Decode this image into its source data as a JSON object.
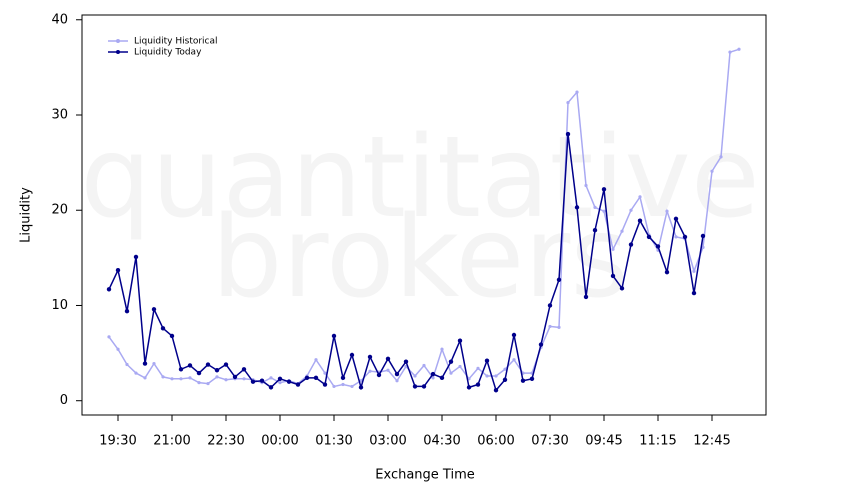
{
  "chart_data": {
    "type": "line",
    "watermark": [
      "quantitative",
      "brokers"
    ],
    "xlabel": "Exchange Time",
    "ylabel": "Liquidity",
    "categories": [
      null,
      "19:30",
      null,
      null,
      null,
      null,
      null,
      "21:00",
      null,
      null,
      null,
      null,
      null,
      "22:30",
      null,
      null,
      null,
      null,
      null,
      "00:00",
      null,
      null,
      null,
      null,
      null,
      "01:30",
      null,
      null,
      null,
      null,
      null,
      "03:00",
      null,
      null,
      null,
      null,
      null,
      "04:30",
      null,
      null,
      null,
      null,
      null,
      "06:00",
      null,
      null,
      null,
      null,
      null,
      "07:30",
      null,
      null,
      null,
      null,
      null,
      "09:45",
      null,
      null,
      null,
      null,
      null,
      "11:15",
      null,
      null,
      null,
      null,
      null,
      "12:45",
      null,
      null,
      null
    ],
    "series": [
      {
        "name": "Liquidity Historical",
        "color": "#a9a9f2",
        "values": [
          6.7,
          5.4,
          3.8,
          2.9,
          2.4,
          3.9,
          2.5,
          2.3,
          2.3,
          2.4,
          1.9,
          1.8,
          2.5,
          2.2,
          2.3,
          2.3,
          2.2,
          1.9,
          2.4,
          1.9,
          2.1,
          1.8,
          2.6,
          4.3,
          2.9,
          1.5,
          1.7,
          1.5,
          2.1,
          3.1,
          3.0,
          3.2,
          2.1,
          3.6,
          2.6,
          3.7,
          2.4,
          5.4,
          2.9,
          3.6,
          2.3,
          3.4,
          2.6,
          2.6,
          3.3,
          4.3,
          2.9,
          2.9,
          5.6,
          7.8,
          7.7,
          31.3,
          32.4,
          22.6,
          20.3,
          19.9,
          15.9,
          17.8,
          20.0,
          21.4,
          17.4,
          15.8,
          19.9,
          17.2,
          17.0,
          13.6,
          16.1,
          24.1,
          25.6,
          36.6,
          36.9
        ]
      },
      {
        "name": "Liquidity Today",
        "color": "#00008b",
        "values": [
          11.7,
          13.7,
          9.4,
          15.1,
          3.9,
          9.6,
          7.6,
          6.8,
          3.3,
          3.7,
          2.9,
          3.8,
          3.2,
          3.8,
          2.5,
          3.3,
          2.0,
          2.1,
          1.4,
          2.3,
          2.0,
          1.7,
          2.4,
          2.4,
          1.7,
          6.8,
          2.4,
          4.8,
          1.4,
          4.6,
          2.7,
          4.4,
          2.8,
          4.1,
          1.5,
          1.5,
          2.8,
          2.4,
          4.1,
          6.3,
          1.4,
          1.7,
          4.2,
          1.1,
          2.2,
          6.9,
          2.1,
          2.3,
          5.9,
          10.0,
          12.7,
          28.0,
          20.3,
          10.9,
          17.9,
          22.2,
          13.1,
          11.8,
          16.4,
          18.9,
          17.2,
          16.2,
          13.5,
          19.1,
          17.2,
          11.3,
          17.3,
          null,
          null,
          null,
          null
        ]
      }
    ],
    "ylim": [
      -1.5,
      40.5
    ],
    "yticks": [
      0,
      10,
      20,
      30,
      40
    ],
    "legend": "top-left"
  }
}
